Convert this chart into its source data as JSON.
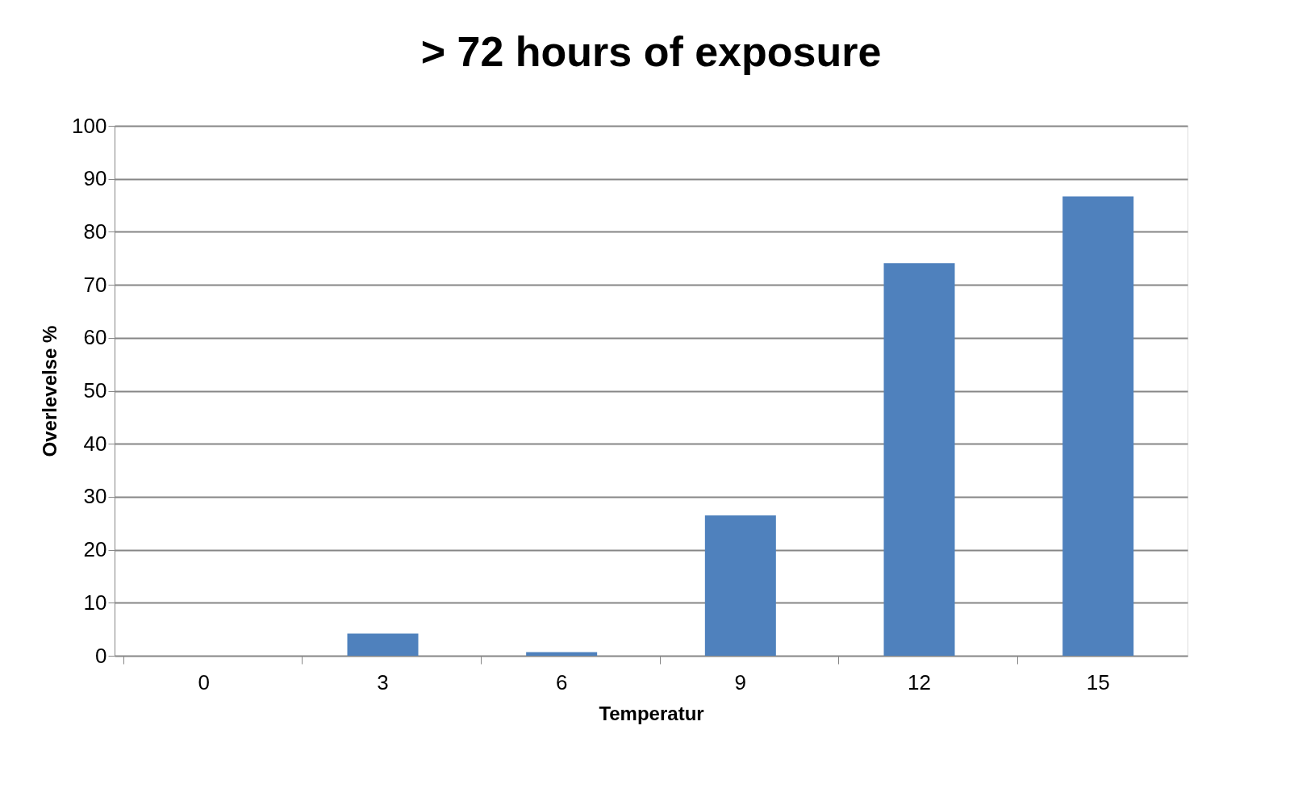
{
  "chart_data": {
    "type": "bar",
    "title": "> 72 hours of exposure",
    "xlabel": "Temperatur",
    "ylabel": "Overlevelse %",
    "categories": [
      "0",
      "3",
      "6",
      "9",
      "12",
      "15"
    ],
    "values": [
      0,
      4.2,
      0.7,
      26.5,
      74.1,
      86.7
    ],
    "color": "#4f81bd",
    "ylim": [
      0,
      100
    ],
    "yticks": [
      0,
      10,
      20,
      30,
      40,
      50,
      60,
      70,
      80,
      90,
      100
    ],
    "grid": "y"
  }
}
